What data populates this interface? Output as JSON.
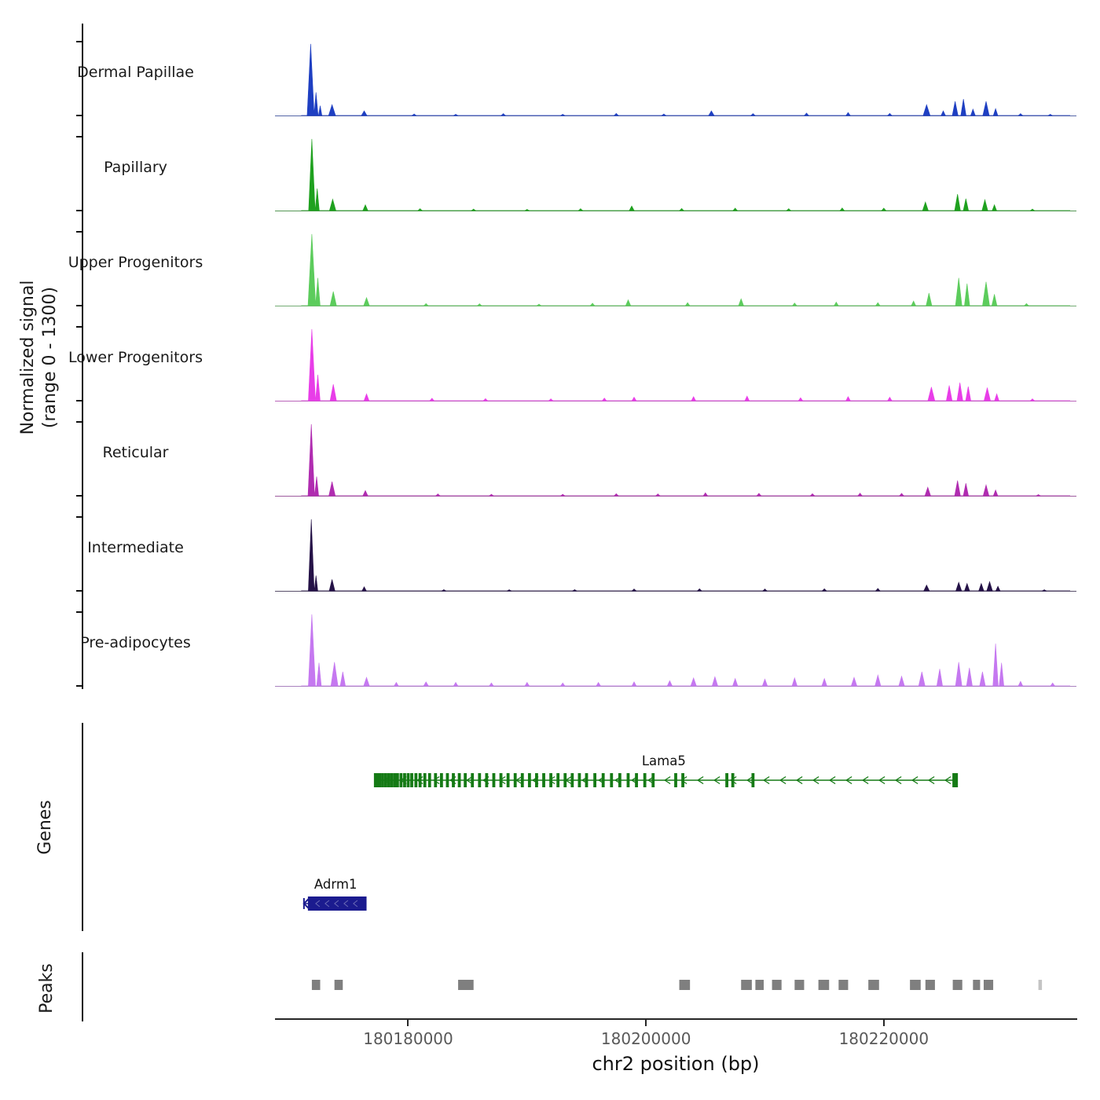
{
  "figure": {
    "ylabel_line1": "Normalized signal",
    "ylabel_line2": "(range 0 - 1300)",
    "genes_section_label": "Genes",
    "peaks_section_label": "Peaks",
    "xlabel": "chr2 position (bp)"
  },
  "chart_data": {
    "type": "area",
    "title": "",
    "xlabel": "chr2 position (bp)",
    "ylabel": "Normalized signal (range 0 - 1300)",
    "x_range": [
      180168800,
      180236200
    ],
    "y_range": [
      0,
      1300
    ],
    "x_ticks": [
      180180000,
      180200000,
      180220000
    ],
    "x_tick_labels": [
      "180180000",
      "180200000",
      "180220000"
    ],
    "tracks": [
      {
        "name": "Dermal Papillae",
        "color": "#1e3fc2",
        "peaks": [
          [
            180171800,
            1280,
            600
          ],
          [
            180172250,
            420,
            350
          ],
          [
            180172600,
            180,
            300
          ],
          [
            180173600,
            200,
            600
          ],
          [
            180176300,
            90,
            500
          ],
          [
            180180500,
            35,
            400
          ],
          [
            180184000,
            30,
            400
          ],
          [
            180188000,
            40,
            400
          ],
          [
            180193000,
            30,
            400
          ],
          [
            180197500,
            45,
            400
          ],
          [
            180201500,
            35,
            400
          ],
          [
            180205500,
            90,
            500
          ],
          [
            180209000,
            40,
            400
          ],
          [
            180213500,
            50,
            400
          ],
          [
            180217000,
            60,
            400
          ],
          [
            180220500,
            45,
            400
          ],
          [
            180223600,
            200,
            600
          ],
          [
            180225000,
            90,
            400
          ],
          [
            180226000,
            260,
            500
          ],
          [
            180226700,
            300,
            450
          ],
          [
            180227500,
            120,
            400
          ],
          [
            180228600,
            260,
            550
          ],
          [
            180229400,
            130,
            400
          ],
          [
            180231500,
            40,
            400
          ],
          [
            180234000,
            30,
            400
          ]
        ]
      },
      {
        "name": "Papillary",
        "color": "#1fa11f",
        "peaks": [
          [
            180171900,
            1280,
            550
          ],
          [
            180172350,
            400,
            350
          ],
          [
            180173650,
            210,
            550
          ],
          [
            180176400,
            110,
            450
          ],
          [
            180181000,
            40,
            400
          ],
          [
            180185500,
            35,
            400
          ],
          [
            180190000,
            30,
            400
          ],
          [
            180194500,
            40,
            400
          ],
          [
            180198800,
            90,
            450
          ],
          [
            180203000,
            45,
            400
          ],
          [
            180207500,
            50,
            400
          ],
          [
            180212000,
            40,
            400
          ],
          [
            180216500,
            55,
            400
          ],
          [
            180220000,
            50,
            400
          ],
          [
            180223500,
            160,
            500
          ],
          [
            180226200,
            300,
            500
          ],
          [
            180226900,
            220,
            450
          ],
          [
            180228500,
            200,
            500
          ],
          [
            180229300,
            110,
            400
          ],
          [
            180232500,
            35,
            400
          ]
        ]
      },
      {
        "name": "Upper Progenitors",
        "color": "#5ccc5c",
        "peaks": [
          [
            180171900,
            1280,
            650
          ],
          [
            180172400,
            500,
            400
          ],
          [
            180173700,
            260,
            550
          ],
          [
            180176500,
            150,
            500
          ],
          [
            180181500,
            45,
            400
          ],
          [
            180186000,
            40,
            400
          ],
          [
            180191000,
            35,
            400
          ],
          [
            180195500,
            50,
            400
          ],
          [
            180198500,
            110,
            450
          ],
          [
            180203500,
            60,
            400
          ],
          [
            180208000,
            130,
            450
          ],
          [
            180212500,
            55,
            400
          ],
          [
            180216000,
            70,
            400
          ],
          [
            180219500,
            60,
            400
          ],
          [
            180222500,
            90,
            400
          ],
          [
            180223800,
            230,
            500
          ],
          [
            180226300,
            500,
            550
          ],
          [
            180227000,
            400,
            450
          ],
          [
            180228600,
            430,
            600
          ],
          [
            180229300,
            210,
            450
          ],
          [
            180232000,
            45,
            400
          ]
        ]
      },
      {
        "name": "Lower Progenitors",
        "color": "#e83de8",
        "peaks": [
          [
            180171900,
            1280,
            600
          ],
          [
            180172400,
            470,
            400
          ],
          [
            180173700,
            300,
            550
          ],
          [
            180176500,
            130,
            450
          ],
          [
            180182000,
            50,
            400
          ],
          [
            180186500,
            45,
            400
          ],
          [
            180192000,
            40,
            400
          ],
          [
            180196500,
            55,
            400
          ],
          [
            180199000,
            70,
            400
          ],
          [
            180204000,
            80,
            400
          ],
          [
            180208500,
            90,
            400
          ],
          [
            180213000,
            60,
            400
          ],
          [
            180217000,
            80,
            400
          ],
          [
            180220500,
            70,
            400
          ],
          [
            180224000,
            250,
            600
          ],
          [
            180225500,
            280,
            500
          ],
          [
            180226400,
            330,
            500
          ],
          [
            180227100,
            260,
            450
          ],
          [
            180228700,
            240,
            550
          ],
          [
            180229500,
            130,
            400
          ],
          [
            180232500,
            40,
            400
          ]
        ]
      },
      {
        "name": "Reticular",
        "color": "#b02cb0",
        "peaks": [
          [
            180171850,
            1280,
            550
          ],
          [
            180172300,
            350,
            350
          ],
          [
            180173600,
            260,
            550
          ],
          [
            180176400,
            100,
            450
          ],
          [
            180182500,
            40,
            400
          ],
          [
            180187000,
            35,
            400
          ],
          [
            180193000,
            35,
            400
          ],
          [
            180197500,
            45,
            400
          ],
          [
            180201000,
            40,
            400
          ],
          [
            180205000,
            60,
            400
          ],
          [
            180209500,
            50,
            400
          ],
          [
            180214000,
            45,
            400
          ],
          [
            180218000,
            55,
            400
          ],
          [
            180221500,
            50,
            400
          ],
          [
            180223700,
            160,
            500
          ],
          [
            180226200,
            280,
            500
          ],
          [
            180226900,
            230,
            450
          ],
          [
            180228600,
            200,
            500
          ],
          [
            180229400,
            110,
            400
          ],
          [
            180233000,
            30,
            400
          ]
        ]
      },
      {
        "name": "Intermediate",
        "color": "#251247",
        "peaks": [
          [
            180171850,
            1280,
            500
          ],
          [
            180172250,
            280,
            300
          ],
          [
            180173600,
            210,
            500
          ],
          [
            180176300,
            80,
            400
          ],
          [
            180183000,
            30,
            400
          ],
          [
            180188500,
            28,
            400
          ],
          [
            180194000,
            30,
            400
          ],
          [
            180199000,
            40,
            400
          ],
          [
            180204500,
            45,
            400
          ],
          [
            180210000,
            40,
            400
          ],
          [
            180215000,
            45,
            400
          ],
          [
            180219500,
            50,
            400
          ],
          [
            180223600,
            110,
            500
          ],
          [
            180226300,
            160,
            500
          ],
          [
            180227000,
            140,
            450
          ],
          [
            180228200,
            140,
            450
          ],
          [
            180228900,
            170,
            500
          ],
          [
            180229600,
            90,
            400
          ],
          [
            180233500,
            28,
            400
          ]
        ]
      },
      {
        "name": "Pre-adipocytes",
        "color": "#c578f0",
        "peaks": [
          [
            180171900,
            1280,
            600
          ],
          [
            180172500,
            420,
            400
          ],
          [
            180173800,
            430,
            600
          ],
          [
            180174500,
            260,
            450
          ],
          [
            180176500,
            160,
            500
          ],
          [
            180179000,
            70,
            400
          ],
          [
            180181500,
            80,
            450
          ],
          [
            180184000,
            70,
            400
          ],
          [
            180187000,
            60,
            400
          ],
          [
            180190000,
            70,
            400
          ],
          [
            180193000,
            60,
            400
          ],
          [
            180196000,
            70,
            400
          ],
          [
            180199000,
            80,
            400
          ],
          [
            180202000,
            100,
            450
          ],
          [
            180204000,
            150,
            500
          ],
          [
            180205800,
            170,
            500
          ],
          [
            180207500,
            140,
            450
          ],
          [
            180210000,
            130,
            450
          ],
          [
            180212500,
            150,
            450
          ],
          [
            180215000,
            140,
            450
          ],
          [
            180217500,
            160,
            500
          ],
          [
            180219500,
            200,
            500
          ],
          [
            180221500,
            180,
            500
          ],
          [
            180223200,
            260,
            550
          ],
          [
            180224700,
            310,
            500
          ],
          [
            180226300,
            430,
            550
          ],
          [
            180227200,
            330,
            500
          ],
          [
            180228300,
            260,
            500
          ],
          [
            180229400,
            760,
            450
          ],
          [
            180229900,
            420,
            400
          ],
          [
            180231500,
            90,
            400
          ],
          [
            180234200,
            60,
            400
          ]
        ]
      }
    ],
    "genes": [
      {
        "name": "Lama5",
        "color": "#157a15",
        "start": 180177300,
        "end": 180226200,
        "strand": "-",
        "label_pos": 180201500,
        "exons": [
          180177350,
          180177600,
          180177850,
          180178100,
          180178350,
          180178600,
          180178850,
          180179100,
          180179400,
          180179700,
          180180000,
          180180300,
          180180650,
          180181000,
          180181400,
          180181800,
          180182300,
          180182800,
          180183300,
          180183800,
          180184300,
          180184800,
          180185400,
          180186000,
          180186600,
          180187200,
          180187800,
          180188400,
          180189000,
          180189600,
          180190200,
          180190800,
          180191400,
          180192000,
          180192600,
          180193200,
          180193800,
          180194400,
          180195000,
          180195700,
          180196400,
          180197100,
          180197800,
          180198500,
          180199200,
          180199900,
          180200600,
          180202500,
          180203100,
          180206800,
          180207300,
          180209000,
          180226000
        ]
      },
      {
        "name": "Adrm1",
        "color": "#1b1b8f",
        "start": 180171300,
        "end": 180176500,
        "strand": "-",
        "label_pos": 180173900,
        "exons": [
          180171700,
          180172000,
          180172300,
          180172600,
          180172900,
          180173200,
          180173500,
          180173800,
          180174100,
          180174400,
          180174700,
          180175000,
          180175300,
          180175600,
          180175900,
          180176200
        ]
      }
    ],
    "peak_regions": [
      [
        180171900,
        180172600
      ],
      [
        180173800,
        180174500
      ],
      [
        180184200,
        180185500
      ],
      [
        180202800,
        180203700
      ],
      [
        180208000,
        180208900
      ],
      [
        180209200,
        180209900
      ],
      [
        180210600,
        180211400
      ],
      [
        180212500,
        180213300
      ],
      [
        180214500,
        180215400
      ],
      [
        180216200,
        180217000
      ],
      [
        180218700,
        180219600
      ],
      [
        180222200,
        180223100
      ],
      [
        180223500,
        180224300
      ],
      [
        180225800,
        180226600
      ],
      [
        180227500,
        180228100
      ],
      [
        180228400,
        180229200
      ],
      [
        180233000,
        180233300,
        "light"
      ]
    ],
    "colors": {
      "peak_box": "#7f7f7f",
      "peak_box_light": "#c4c4c4",
      "baseline": "#8c8c8c",
      "axis": "#262626"
    }
  }
}
